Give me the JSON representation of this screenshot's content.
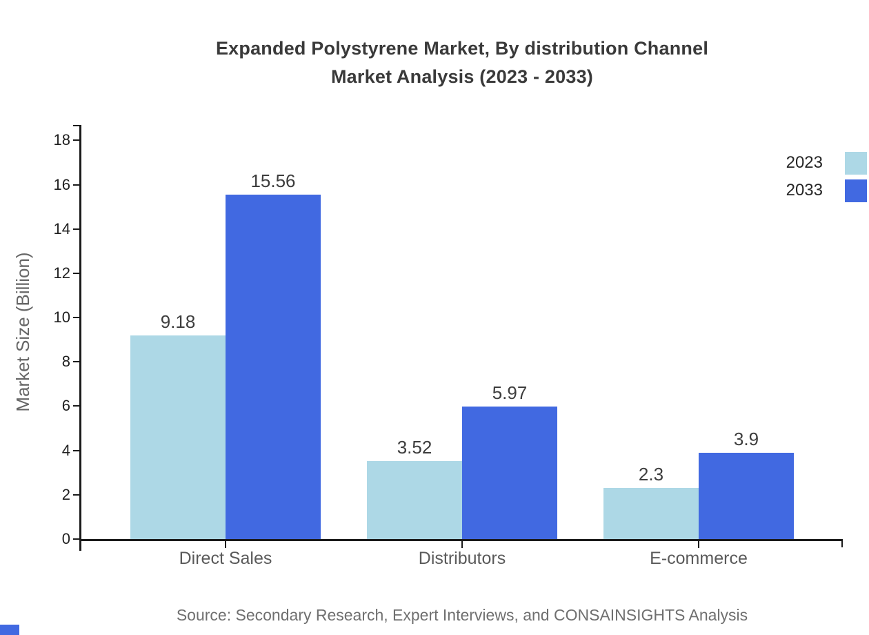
{
  "title": {
    "line1": "Expanded Polystyrene Market, By distribution Channel",
    "line2": "Market Analysis (2023 - 2033)"
  },
  "y_axis": {
    "label": "Market Size (Billion)"
  },
  "source": "Source: Secondary Research, Expert Interviews, and CONSAINSIGHTS Analysis",
  "colors": {
    "series_2023": "#ADD8E6",
    "series_2033": "#4169E1",
    "accent_mark": "#4169E1"
  },
  "chart_data": {
    "type": "bar",
    "title": "Expanded Polystyrene Market, By distribution Channel Market Analysis (2023 - 2033)",
    "categories": [
      "Direct Sales",
      "Distributors",
      "E-commerce"
    ],
    "series": [
      {
        "name": "2023",
        "color": "#ADD8E6",
        "values": [
          9.18,
          3.52,
          2.3
        ]
      },
      {
        "name": "2033",
        "color": "#4169E1",
        "values": [
          15.56,
          5.97,
          3.9
        ]
      }
    ],
    "value_labels": [
      [
        "9.18",
        "15.56"
      ],
      [
        "3.52",
        "5.97"
      ],
      [
        "2.3",
        "3.9"
      ]
    ],
    "xlabel": "",
    "ylabel": "Market Size (Billion)",
    "ylim": [
      0,
      18.7
    ],
    "yticks": [
      0,
      2,
      4,
      6,
      8,
      10,
      12,
      14,
      16,
      18
    ],
    "grid": false,
    "legend_position": "top-right"
  }
}
